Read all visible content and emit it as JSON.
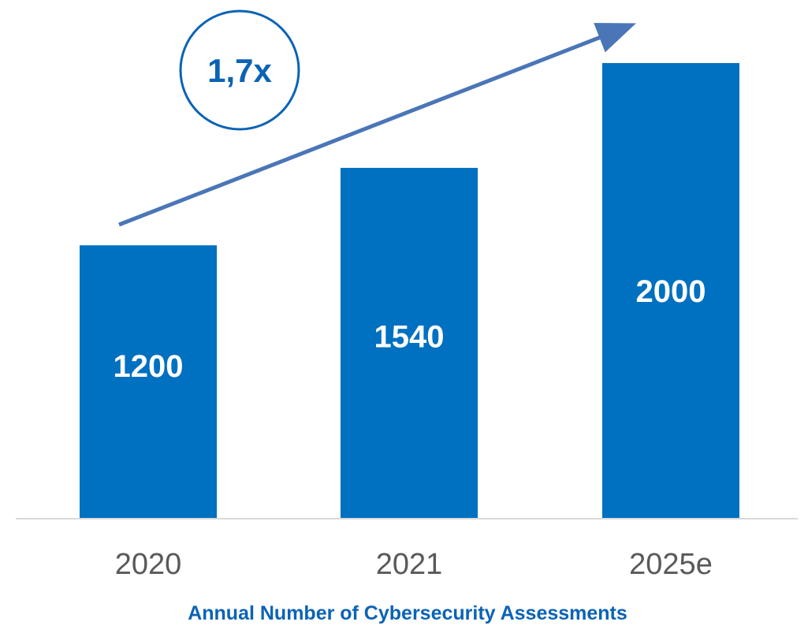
{
  "chart_data": {
    "type": "bar",
    "title": "Annual Number of Cybersecurity Assessments",
    "categories": [
      "2020",
      "2021",
      "2025e"
    ],
    "series": [
      {
        "values": [
          1200,
          1540,
          2000
        ]
      }
    ],
    "ylim": [
      0,
      2000
    ],
    "grid": false,
    "annotation": {
      "text": "1,7x"
    },
    "colors": {
      "bar": "#0070c0",
      "value_label": "#ffffff",
      "tick_label": "#595959",
      "title": "#0b63b5",
      "baseline": "#d9d9d9",
      "arrow": "#4a76b8",
      "annotation_circle": "#0b63b5"
    }
  }
}
